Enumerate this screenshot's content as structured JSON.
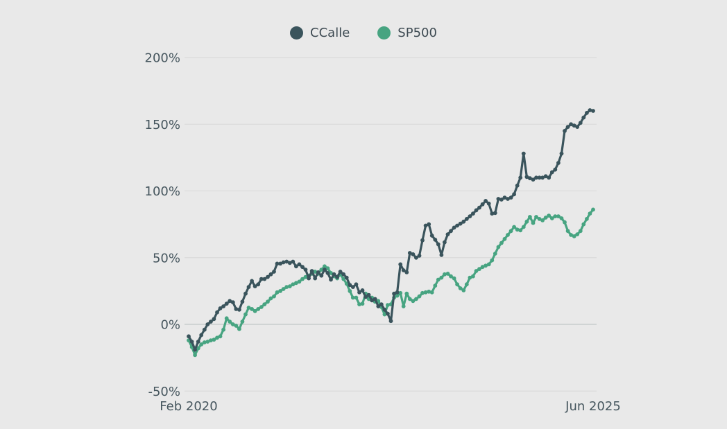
{
  "page": {
    "background_color": "#e9e9e9"
  },
  "legend": {
    "items": [
      {
        "label": "CCalle",
        "color": "#3a545c"
      },
      {
        "label": "SP500",
        "color": "#47a481"
      }
    ]
  },
  "chart_data": {
    "type": "line",
    "title": "",
    "xlabel": "",
    "ylabel": "",
    "x_axis": {
      "start_label": "Feb 2020",
      "end_label": "Jun 2025"
    },
    "y_axis": {
      "unit": "%",
      "min": -50,
      "max": 200,
      "ticks": [
        200,
        150,
        100,
        50,
        0,
        -50
      ]
    },
    "grid": {
      "show": true,
      "color": "#d8d8d8",
      "zero_line_color": "#b6c0be"
    },
    "legend_position": "top-center",
    "marker_style": "dots-on-line",
    "sampling": "approx. semi-monthly from Feb 2020 to Jun 2025",
    "text_color": "#46565e",
    "series": [
      {
        "name": "CCalle",
        "color": "#3a545c",
        "values": [
          -9,
          -13,
          -19,
          -13,
          -8,
          -4,
          0,
          2,
          4,
          9,
          12,
          13.5,
          15.5,
          17.5,
          16.5,
          11.5,
          11,
          17,
          23,
          28,
          32.5,
          28.5,
          30,
          34,
          34,
          35.5,
          37.5,
          39.5,
          45.5,
          45.5,
          46.5,
          47,
          46,
          47,
          43.5,
          45,
          43,
          41,
          34.5,
          40,
          34.5,
          39,
          36.5,
          41,
          38.5,
          33.5,
          37.5,
          35.5,
          39.5,
          37.5,
          35,
          29.5,
          28,
          30,
          24,
          25.5,
          20.5,
          22,
          18,
          19,
          13.5,
          15,
          11,
          8,
          2.5,
          23,
          24,
          45,
          40.5,
          39,
          53.5,
          52.5,
          50,
          51.5,
          63,
          74,
          75,
          66.5,
          63.5,
          60,
          52,
          61.5,
          67.5,
          70,
          72.5,
          74,
          75.5,
          77,
          79,
          81,
          83,
          85.5,
          87.5,
          90,
          92.5,
          90.5,
          83,
          83.5,
          94,
          93.5,
          95,
          94,
          95,
          97.5,
          104,
          110,
          128,
          110.5,
          109.5,
          108.5,
          110,
          110,
          110,
          111,
          110,
          114,
          116,
          121,
          128,
          145,
          148,
          150,
          149,
          148,
          151,
          155,
          158.5,
          160.5,
          160
        ]
      },
      {
        "name": "SP500",
        "color": "#47a481",
        "values": [
          -12,
          -17,
          -23,
          -18,
          -15,
          -13.5,
          -13,
          -12,
          -11.5,
          -10,
          -9,
          -4,
          4.5,
          2,
          0,
          -1,
          -3.5,
          2,
          7.5,
          12.5,
          11.5,
          10,
          11.5,
          13,
          15,
          17,
          19.5,
          21,
          24,
          25,
          26.5,
          28,
          28.5,
          30,
          31,
          32,
          34,
          35.5,
          36.5,
          38,
          39.5,
          38,
          41,
          43.5,
          42,
          38.5,
          36,
          34.5,
          37.5,
          34,
          30.5,
          25,
          20,
          20,
          15,
          15.5,
          23,
          19,
          20,
          17,
          17.5,
          13,
          7.5,
          14.5,
          15,
          20,
          21.5,
          23.5,
          13.5,
          23,
          19,
          17.5,
          19,
          21,
          23.5,
          24,
          24.5,
          24,
          29,
          33.5,
          35,
          37.5,
          38,
          36,
          34.5,
          30,
          27,
          25.5,
          30,
          35,
          36,
          40,
          41.5,
          43,
          44,
          45,
          48,
          53,
          58,
          61,
          64,
          67,
          70,
          73,
          71,
          70.5,
          73,
          77,
          80.5,
          76,
          80.5,
          79,
          78,
          80,
          81.5,
          79.5,
          81,
          81,
          79.5,
          76.5,
          70,
          67,
          66,
          67.5,
          70,
          75,
          79,
          83,
          86
        ]
      }
    ]
  }
}
